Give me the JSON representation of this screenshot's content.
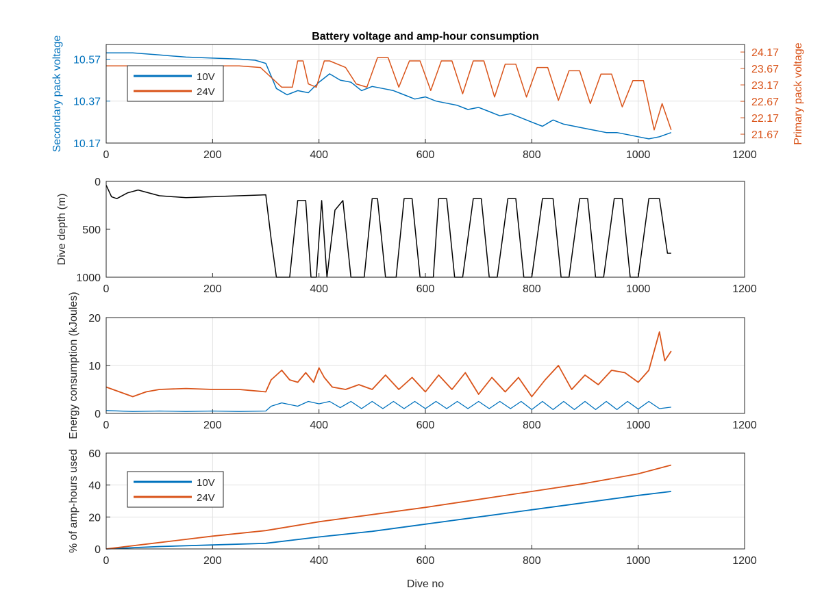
{
  "colors": {
    "blue": "#0072BD",
    "orange": "#D95319",
    "black": "#000000",
    "grid": "#e1e1e1"
  },
  "chart_data": [
    {
      "type": "line",
      "title": "Battery voltage and amp-hour consumption",
      "xlabel": "",
      "ylabel_left": "Secondary pack voltage",
      "ylabel_right": "Primary pack voltage",
      "xlim": [
        0,
        1200
      ],
      "ylim_left": [
        10.17,
        10.64
      ],
      "ylim_right": [
        21.4,
        24.4
      ],
      "xticks": [
        "0",
        "200",
        "400",
        "600",
        "800",
        "1000",
        "1200"
      ],
      "yticks_left": [
        "10.17",
        "10.37",
        "10.57"
      ],
      "yticks_right": [
        "21.67",
        "22.17",
        "22.67",
        "23.17",
        "23.67",
        "24.17"
      ],
      "grid": true,
      "legend": {
        "position": "top-left",
        "entries": [
          "10V",
          "24V"
        ]
      },
      "series": [
        {
          "name": "10V",
          "axis": "left",
          "color": "#0072BD",
          "x": [
            0,
            50,
            100,
            150,
            200,
            250,
            280,
            300,
            320,
            340,
            360,
            380,
            400,
            420,
            440,
            460,
            480,
            500,
            520,
            540,
            560,
            580,
            600,
            620,
            640,
            660,
            680,
            700,
            720,
            740,
            760,
            780,
            800,
            820,
            840,
            860,
            880,
            900,
            920,
            940,
            960,
            980,
            1000,
            1020,
            1040,
            1062
          ],
          "y": [
            10.6,
            10.6,
            10.59,
            10.58,
            10.575,
            10.57,
            10.565,
            10.55,
            10.43,
            10.4,
            10.42,
            10.41,
            10.46,
            10.5,
            10.47,
            10.46,
            10.42,
            10.44,
            10.43,
            10.42,
            10.4,
            10.38,
            10.39,
            10.37,
            10.36,
            10.35,
            10.33,
            10.34,
            10.32,
            10.3,
            10.31,
            10.29,
            10.27,
            10.25,
            10.28,
            10.26,
            10.25,
            10.24,
            10.23,
            10.22,
            10.22,
            10.21,
            10.2,
            10.19,
            10.2,
            10.22
          ]
        },
        {
          "name": "24V",
          "axis": "right",
          "color": "#D95319",
          "x": [
            0,
            50,
            100,
            150,
            200,
            250,
            290,
            310,
            330,
            350,
            360,
            370,
            380,
            395,
            410,
            420,
            450,
            470,
            490,
            510,
            530,
            550,
            570,
            590,
            610,
            630,
            650,
            670,
            690,
            710,
            730,
            750,
            770,
            790,
            810,
            830,
            850,
            870,
            890,
            910,
            930,
            950,
            970,
            990,
            1010,
            1030,
            1045,
            1062
          ],
          "y": [
            23.75,
            23.75,
            23.75,
            23.75,
            23.75,
            23.75,
            23.7,
            23.4,
            23.1,
            23.1,
            23.9,
            23.9,
            23.2,
            23.1,
            23.9,
            23.9,
            23.7,
            23.2,
            23.1,
            24.0,
            24.0,
            23.1,
            23.9,
            23.9,
            23.0,
            23.9,
            23.9,
            22.9,
            23.9,
            23.9,
            22.8,
            23.8,
            23.8,
            22.8,
            23.7,
            23.7,
            22.7,
            23.6,
            23.6,
            22.6,
            23.5,
            23.5,
            22.5,
            23.3,
            23.3,
            21.8,
            22.6,
            21.8
          ]
        }
      ]
    },
    {
      "type": "line",
      "title": "",
      "xlabel": "",
      "ylabel": "Dive depth (m)",
      "xlim": [
        0,
        1200
      ],
      "ylim": [
        0,
        1000
      ],
      "reversed_y": true,
      "xticks": [
        "0",
        "200",
        "400",
        "600",
        "800",
        "1000",
        "1200"
      ],
      "yticks": [
        "0",
        "500",
        "1000"
      ],
      "grid": false,
      "series": [
        {
          "name": "",
          "color": "#000000",
          "x": [
            0,
            10,
            20,
            40,
            60,
            100,
            150,
            200,
            250,
            300,
            310,
            320,
            330,
            345,
            360,
            375,
            385,
            395,
            405,
            415,
            430,
            445,
            460,
            485,
            500,
            510,
            525,
            545,
            560,
            575,
            590,
            615,
            625,
            640,
            655,
            670,
            690,
            705,
            720,
            735,
            755,
            770,
            785,
            800,
            820,
            840,
            855,
            870,
            890,
            905,
            920,
            935,
            955,
            970,
            985,
            1000,
            1020,
            1040,
            1055,
            1062
          ],
          "y": [
            40,
            160,
            180,
            120,
            90,
            150,
            170,
            160,
            150,
            140,
            600,
            1000,
            1000,
            1000,
            200,
            200,
            1000,
            1000,
            200,
            1000,
            300,
            200,
            1000,
            1000,
            180,
            180,
            1000,
            1000,
            180,
            180,
            1000,
            1000,
            180,
            180,
            1000,
            1000,
            180,
            180,
            1000,
            1000,
            180,
            180,
            1000,
            1000,
            180,
            180,
            1000,
            1000,
            180,
            180,
            1000,
            1000,
            180,
            180,
            1000,
            1000,
            180,
            180,
            750,
            750
          ]
        }
      ]
    },
    {
      "type": "line",
      "title": "",
      "xlabel": "",
      "ylabel": "Energy consumption (kJoules)",
      "xlim": [
        0,
        1200
      ],
      "ylim": [
        0,
        20
      ],
      "xticks": [
        "0",
        "200",
        "400",
        "600",
        "800",
        "1000",
        "1200"
      ],
      "yticks": [
        "0",
        "10",
        "20"
      ],
      "grid": true,
      "series": [
        {
          "name": "24V",
          "color": "#D95319",
          "x": [
            0,
            25,
            50,
            75,
            100,
            150,
            200,
            250,
            300,
            310,
            330,
            345,
            360,
            375,
            390,
            400,
            410,
            425,
            450,
            475,
            500,
            525,
            550,
            575,
            600,
            625,
            650,
            675,
            700,
            725,
            750,
            775,
            800,
            825,
            850,
            875,
            900,
            925,
            950,
            975,
            1000,
            1020,
            1040,
            1050,
            1062
          ],
          "y": [
            5.5,
            4.5,
            3.5,
            4.5,
            5.0,
            5.2,
            5.0,
            5.0,
            4.5,
            7.0,
            9.0,
            7.0,
            6.5,
            8.5,
            6.5,
            9.5,
            7.5,
            5.5,
            5.0,
            6.0,
            5.0,
            8.0,
            5.0,
            7.5,
            4.5,
            8.0,
            5.0,
            8.5,
            4.0,
            7.5,
            4.5,
            7.5,
            3.5,
            7.0,
            10.0,
            5.0,
            8.0,
            6.0,
            9.0,
            8.5,
            6.5,
            9.0,
            17.0,
            11.0,
            13.0
          ]
        },
        {
          "name": "10V",
          "color": "#0072BD",
          "x": [
            0,
            50,
            100,
            150,
            200,
            250,
            300,
            310,
            330,
            360,
            380,
            400,
            420,
            440,
            460,
            480,
            500,
            520,
            540,
            560,
            580,
            600,
            620,
            640,
            660,
            680,
            700,
            720,
            740,
            760,
            780,
            800,
            820,
            840,
            860,
            880,
            900,
            920,
            940,
            960,
            980,
            1000,
            1020,
            1040,
            1062
          ],
          "y": [
            0.6,
            0.4,
            0.5,
            0.4,
            0.5,
            0.4,
            0.5,
            1.5,
            2.2,
            1.5,
            2.5,
            2.0,
            2.5,
            1.2,
            2.5,
            1.0,
            2.5,
            1.0,
            2.5,
            1.0,
            2.5,
            1.0,
            2.5,
            1.0,
            2.5,
            1.0,
            2.5,
            1.0,
            2.5,
            1.0,
            2.5,
            0.8,
            2.5,
            0.8,
            2.5,
            0.8,
            2.5,
            0.8,
            2.5,
            0.8,
            2.5,
            0.9,
            2.5,
            1.0,
            1.3
          ]
        }
      ]
    },
    {
      "type": "line",
      "title": "",
      "xlabel": "Dive no",
      "ylabel": "% of amp-hours used",
      "xlim": [
        0,
        1200
      ],
      "ylim": [
        0,
        60
      ],
      "xticks": [
        "0",
        "200",
        "400",
        "600",
        "800",
        "1000",
        "1200"
      ],
      "yticks": [
        "0",
        "20",
        "40",
        "60"
      ],
      "grid": true,
      "legend": {
        "position": "left",
        "entries": [
          "10V",
          "24V"
        ]
      },
      "series": [
        {
          "name": "10V",
          "color": "#0072BD",
          "x": [
            0,
            100,
            200,
            300,
            400,
            500,
            600,
            700,
            800,
            900,
            1000,
            1062
          ],
          "y": [
            0,
            1.5,
            2.5,
            3.5,
            7.5,
            11,
            15.5,
            20,
            24.5,
            29,
            33.5,
            36
          ]
        },
        {
          "name": "24V",
          "color": "#D95319",
          "x": [
            0,
            100,
            200,
            300,
            400,
            500,
            600,
            700,
            800,
            900,
            1000,
            1062
          ],
          "y": [
            0,
            4,
            8,
            11.5,
            17,
            21.5,
            26,
            31,
            36,
            41,
            47,
            52.5
          ]
        }
      ]
    }
  ]
}
